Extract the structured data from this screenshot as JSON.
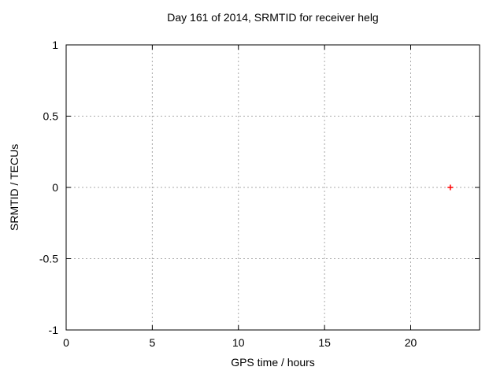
{
  "chart_data": {
    "type": "scatter",
    "title": "Day 161 of 2014, SRMTID for receiver helg",
    "xlabel": "GPS time / hours",
    "ylabel": "SRMTID / TECUs",
    "xlim": [
      0,
      24
    ],
    "ylim": [
      -1,
      1
    ],
    "xticks": {
      "values": [
        0,
        5,
        10,
        15,
        20
      ],
      "labels": [
        "0",
        "5",
        "10",
        "15",
        "20"
      ]
    },
    "yticks": {
      "values": [
        1,
        0.5,
        0,
        -0.5,
        -1
      ],
      "labels": [
        "1",
        "0.5",
        "0",
        "-0.5",
        "-1"
      ]
    },
    "grid": true,
    "legend": "none",
    "series": [
      {
        "name": "SRMTID",
        "marker": "plus",
        "color": "#ff0000",
        "points": [
          {
            "x": 22.3,
            "y": 0
          }
        ]
      }
    ],
    "colors": {
      "background": "#ffffff",
      "axis": "#000000",
      "grid": "#a8a8a8",
      "text": "#000000"
    }
  }
}
